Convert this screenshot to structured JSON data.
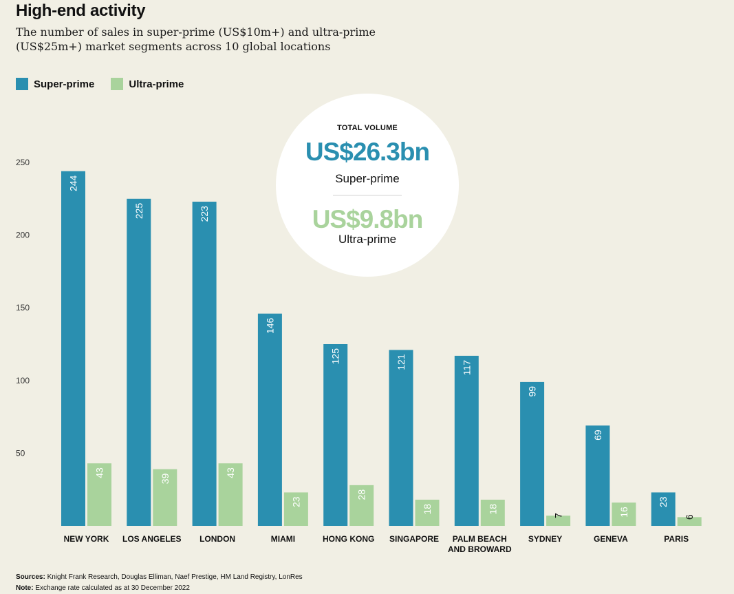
{
  "header": {
    "title": "High-end activity",
    "subtitle": "The number of sales in super-prime (US$10m+) and ultra-prime (US$25m+) market segments across 10 global locations"
  },
  "colors": {
    "super": "#2a8fb0",
    "ultra": "#a9d39c",
    "background": "#f1efe4"
  },
  "total_volume": {
    "heading": "TOTAL VOLUME",
    "super_value": "US$26.3bn",
    "super_label": "Super-prime",
    "ultra_value": "US$9.8bn",
    "ultra_label": "Ultra-prime"
  },
  "footer": {
    "sources_label": "Sources:",
    "sources_text": "Knight Frank Research, Douglas Elliman, Naef Prestige, HM Land Registry, LonRes",
    "note_label": "Note:",
    "note_text": "Exchange rate calculated as at 30 December 2022"
  },
  "chart_data": {
    "type": "bar",
    "title": "High-end activity",
    "xlabel": "",
    "ylabel": "",
    "ylim": [
      0,
      250
    ],
    "yticks": [
      50,
      100,
      150,
      200,
      250
    ],
    "grid": false,
    "legend": "top-left",
    "categories": [
      "NEW YORK",
      "LOS ANGELES",
      "LONDON",
      "MIAMI",
      "HONG KONG",
      "SINGAPORE",
      "PALM BEACH AND BROWARD",
      "SYDNEY",
      "GENEVA",
      "PARIS"
    ],
    "category_lines": [
      [
        "NEW YORK"
      ],
      [
        "LOS ANGELES"
      ],
      [
        "LONDON"
      ],
      [
        "MIAMI"
      ],
      [
        "HONG KONG"
      ],
      [
        "SINGAPORE"
      ],
      [
        "PALM BEACH",
        "AND BROWARD"
      ],
      [
        "SYDNEY"
      ],
      [
        "GENEVA"
      ],
      [
        "PARIS"
      ]
    ],
    "series": [
      {
        "name": "Super-prime",
        "values": [
          244,
          225,
          223,
          146,
          125,
          121,
          117,
          99,
          69,
          23
        ]
      },
      {
        "name": "Ultra-prime",
        "values": [
          43,
          39,
          43,
          23,
          28,
          18,
          18,
          7,
          16,
          6
        ]
      }
    ]
  }
}
